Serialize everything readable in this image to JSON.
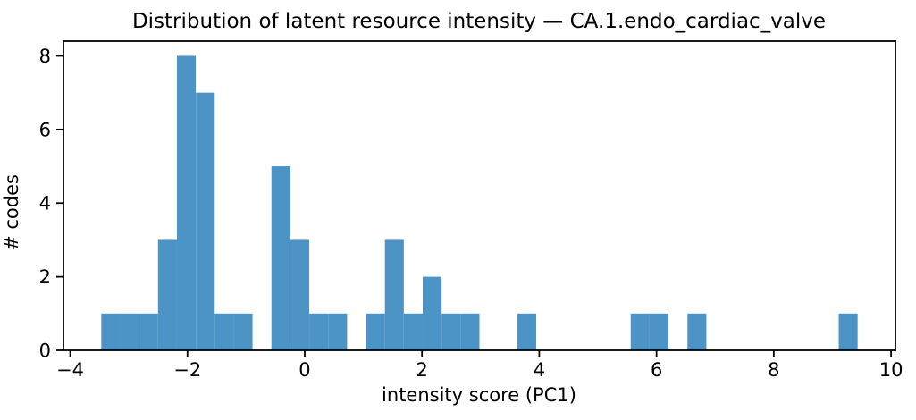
{
  "chart_data": {
    "type": "bar",
    "subtype": "histogram",
    "title": "Distribution of latent resource intensity — CA.1.endo_cardiac_valve",
    "xlabel": "intensity score (PC1)",
    "ylabel": "# codes",
    "bin_start": -3.47,
    "bin_width": 0.3225,
    "counts": [
      1,
      1,
      1,
      3,
      8,
      7,
      1,
      1,
      0,
      5,
      3,
      1,
      1,
      0,
      1,
      3,
      1,
      2,
      1,
      1,
      0,
      0,
      1,
      0,
      0,
      0,
      0,
      0,
      1,
      1,
      0,
      1,
      0,
      0,
      0,
      0,
      0,
      0,
      0,
      1
    ],
    "xticks": [
      -4,
      -2,
      0,
      2,
      4,
      6,
      8,
      10
    ],
    "yticks": [
      0,
      2,
      4,
      6,
      8
    ],
    "xlim": [
      -4.115,
      10.075
    ],
    "ylim": [
      0,
      8.4
    ],
    "bar_color": "#4b94c5",
    "axis_color": "#000000",
    "background_color": "#ffffff",
    "grid": false,
    "legend_position": "none"
  }
}
